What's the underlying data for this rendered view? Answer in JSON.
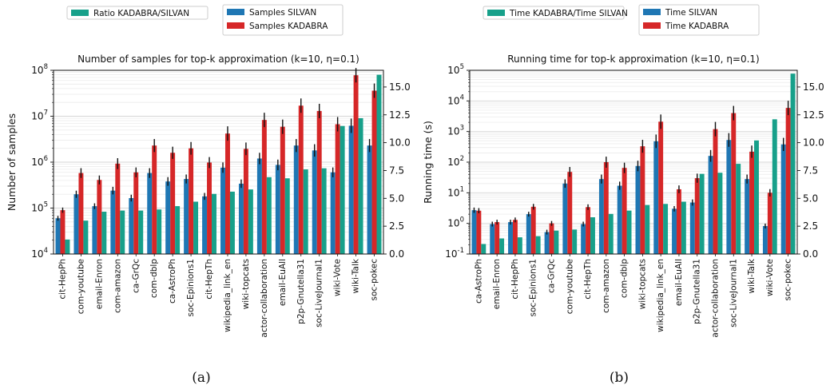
{
  "chart_data": [
    {
      "type": "bar",
      "panel_label": "(a)",
      "title": "Number of samples for top-k approximation (k=10, η=0.1)",
      "ylabel": "Number of samples",
      "xlabel": "",
      "yscale": "log",
      "ylim": [
        10000,
        100000000
      ],
      "yticks": [
        "10^4",
        "10^5",
        "10^6",
        "10^7",
        "10^8"
      ],
      "y2lim": [
        0,
        16.5
      ],
      "y2ticks": [
        "0.0",
        "2.5",
        "5.0",
        "7.5",
        "10.0",
        "12.5",
        "15.0"
      ],
      "grid": true,
      "categories": [
        "cit-HepPh",
        "com-youtube",
        "email-Enron",
        "com-amazon",
        "ca-GrQc",
        "com-dblp",
        "ca-AstroPh",
        "soc-Epinions1",
        "cit-HepTh",
        "wikipedia_link_en",
        "wiki-topcats",
        "actor-collaboration",
        "email-EuAll",
        "p2p-Gnutella31",
        "soc-LiveJournal1",
        "wiki-Vote",
        "wiki-Talk",
        "soc-pokec"
      ],
      "series": [
        {
          "name": "Samples SILVAN",
          "axis": "left",
          "color": "#1f77b4",
          "values": [
            60000,
            200000,
            110000,
            240000,
            165000,
            580000,
            380000,
            430000,
            180000,
            760000,
            340000,
            1200000,
            870000,
            2300000,
            1800000,
            600000,
            6200000,
            2300000
          ]
        },
        {
          "name": "Samples KADABRA",
          "axis": "left",
          "color": "#d62728",
          "values": [
            90000,
            580000,
            410000,
            930000,
            600000,
            2300000,
            1600000,
            2000000,
            980000,
            4200000,
            1950000,
            8300000,
            5900000,
            17000000,
            13000000,
            6700000,
            78000000,
            36000000
          ]
        },
        {
          "name": "Ratio KADABRA/SILVAN",
          "axis": "right",
          "color": "#17a08a",
          "values": [
            1.3,
            3.0,
            3.8,
            3.9,
            3.9,
            4.0,
            4.3,
            4.7,
            5.4,
            5.6,
            5.8,
            6.9,
            6.8,
            7.6,
            7.7,
            11.5,
            12.2,
            16.1
          ]
        }
      ],
      "legend": [
        "Ratio KADABRA/SILVAN",
        "Samples SILVAN",
        "Samples KADABRA"
      ],
      "legend_placement": "top, above plot"
    },
    {
      "type": "bar",
      "panel_label": "(b)",
      "title": "Running time for top-k approximation (k=10, η=0.1)",
      "ylabel": "Running time (s)",
      "xlabel": "",
      "yscale": "log",
      "ylim": [
        0.1,
        100000
      ],
      "yticks": [
        "10^-1",
        "10^0",
        "10^1",
        "10^2",
        "10^3",
        "10^4",
        "10^5"
      ],
      "y2lim": [
        0,
        16.5
      ],
      "y2ticks": [
        "0.0",
        "2.5",
        "5.0",
        "7.5",
        "10.0",
        "12.5",
        "15.0"
      ],
      "grid": true,
      "categories": [
        "ca-AstroPh",
        "email-Enron",
        "cit-HepPh",
        "soc-Epinions1",
        "ca-GrQc",
        "com-youtube",
        "cit-HepTh",
        "com-amazon",
        "com-dblp",
        "wiki-topcats",
        "wikipedia_link_en",
        "email-EuAll",
        "p2p-Gnutella31",
        "actor-collaboration",
        "soc-LiveJournal1",
        "wiki-Talk",
        "wiki-Vote",
        "soc-pokec"
      ],
      "series": [
        {
          "name": "Time SILVAN",
          "axis": "left",
          "color": "#1f77b4",
          "values": [
            2.7,
            0.95,
            1.1,
            2.0,
            0.52,
            20,
            0.95,
            28,
            17,
            75,
            480,
            3.0,
            4.8,
            160,
            530,
            28,
            0.82,
            380
          ]
        },
        {
          "name": "Time KADABRA",
          "axis": "left",
          "color": "#d62728",
          "values": [
            2.6,
            1.1,
            1.3,
            3.5,
            1.0,
            48,
            3.4,
            100,
            65,
            330,
            2100,
            13,
            30,
            1200,
            4000,
            220,
            10,
            5900
          ]
        },
        {
          "name": "Time KADABRA/Time SILVAN",
          "axis": "right",
          "color": "#17a08a",
          "values": [
            0.9,
            1.4,
            1.5,
            1.6,
            2.1,
            2.2,
            3.3,
            3.6,
            3.9,
            4.4,
            4.5,
            4.7,
            7.2,
            7.3,
            8.1,
            10.2,
            12.1,
            16.2
          ]
        }
      ],
      "legend": [
        "Time KADABRA/Time SILVAN",
        "Time SILVAN",
        "Time KADABRA"
      ],
      "legend_placement": "top, above plot"
    }
  ]
}
